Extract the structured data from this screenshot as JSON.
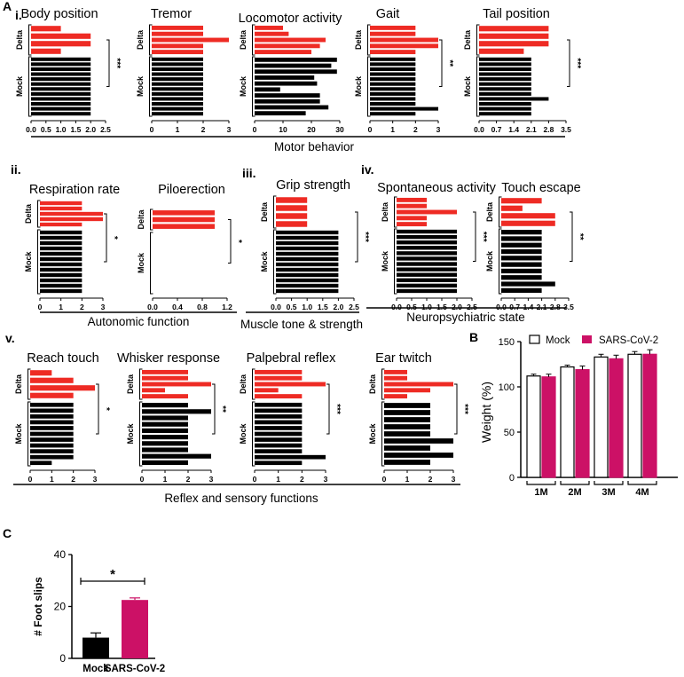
{
  "colors": {
    "delta": "#ee2b24",
    "mock": "#000000",
    "sars": "#cc1166",
    "axis": "#000000",
    "white": "#ffffff"
  },
  "panel_labels": {
    "A": "A",
    "B": "B",
    "C": "C",
    "i": "i.",
    "ii": "ii.",
    "iii": "iii.",
    "iv": "iv.",
    "v": "v."
  },
  "group_labels": {
    "delta": "Delta",
    "mock": "Mock"
  },
  "section_labels": {
    "motor": "Motor behavior",
    "autonomic": "Autonomic function",
    "muscle": "Muscle tone & strength",
    "neuro": "Neuropsychiatric  state",
    "reflex": "Reflex and sensory functions"
  },
  "chart_data": [
    {
      "id": "body-position",
      "type": "bar",
      "orientation": "horizontal",
      "title": "Body position",
      "delta": [
        1,
        2,
        2,
        1
      ],
      "mock": [
        2,
        2,
        2,
        2,
        2,
        2,
        2,
        2,
        2,
        2,
        2,
        2
      ],
      "xlim": [
        0,
        2.5
      ],
      "ticks": [
        "0.0",
        "0.5",
        "1.0",
        "1.5",
        "2.0",
        "2.5"
      ],
      "significance": "***"
    },
    {
      "id": "tremor",
      "type": "bar",
      "orientation": "horizontal",
      "title": "Tremor",
      "delta": [
        2,
        2,
        3,
        2,
        2
      ],
      "mock": [
        2,
        2,
        2,
        2,
        2,
        2,
        2,
        2,
        2,
        2,
        2,
        2
      ],
      "xlim": [
        0,
        3
      ],
      "ticks": [
        "0",
        "1",
        "2",
        "3"
      ],
      "significance": ""
    },
    {
      "id": "locomotor-activity",
      "type": "bar",
      "orientation": "horizontal",
      "title": "Locomotor activity",
      "delta": [
        10,
        12,
        25,
        23,
        20
      ],
      "mock": [
        29,
        27,
        29,
        21,
        22,
        9,
        23,
        23,
        26,
        18
      ],
      "xlim": [
        0,
        30
      ],
      "ticks": [
        "0",
        "10",
        "20",
        "30"
      ],
      "significance": ""
    },
    {
      "id": "gait",
      "type": "bar",
      "orientation": "horizontal",
      "title": "Gait",
      "delta": [
        2,
        2,
        3,
        3,
        2
      ],
      "mock": [
        2,
        2,
        2,
        2,
        2,
        2,
        2,
        2,
        2,
        2,
        3,
        2
      ],
      "xlim": [
        0,
        3
      ],
      "ticks": [
        "0",
        "1",
        "2",
        "3"
      ],
      "significance": "**"
    },
    {
      "id": "tail-position",
      "type": "bar",
      "orientation": "horizontal",
      "title": "Tail position",
      "delta": [
        2.8,
        2.8,
        2.8,
        1.8
      ],
      "mock": [
        2.1,
        2.1,
        2.1,
        2.1,
        2.1,
        2.1,
        2.1,
        2.1,
        2.8,
        2.1,
        2.1,
        2.1
      ],
      "xlim": [
        0,
        3.5
      ],
      "ticks": [
        "0.0",
        "0.7",
        "1.4",
        "2.1",
        "2.8",
        "3.5"
      ],
      "significance": "***"
    },
    {
      "id": "respiration-rate",
      "type": "bar",
      "orientation": "horizontal",
      "title": "Respiration rate",
      "delta": [
        2,
        2,
        3,
        3,
        2
      ],
      "mock": [
        2,
        2,
        2,
        2,
        2,
        2,
        2,
        2,
        2,
        2,
        2,
        2
      ],
      "xlim": [
        0,
        3
      ],
      "ticks": [
        "0",
        "1",
        "2",
        "3"
      ],
      "significance": "*"
    },
    {
      "id": "piloerection",
      "type": "bar",
      "orientation": "horizontal",
      "title": "Piloerection",
      "delta": [
        1,
        1,
        1
      ],
      "mock": [
        0,
        0,
        0,
        0,
        0,
        0,
        0,
        0,
        0,
        0,
        0,
        0
      ],
      "xlim": [
        0,
        1.2
      ],
      "ticks": [
        "0.0",
        "0.4",
        "0.8",
        "1.2"
      ],
      "significance": "*"
    },
    {
      "id": "grip-strength",
      "type": "bar",
      "orientation": "horizontal",
      "title": "Grip strength",
      "delta": [
        1,
        1,
        1,
        1
      ],
      "mock": [
        2,
        2,
        2,
        2,
        2,
        2,
        2,
        2,
        2,
        2,
        2,
        2
      ],
      "xlim": [
        0,
        2.5
      ],
      "ticks": [
        "0.0",
        "0.5",
        "1.0",
        "1.5",
        "2.0",
        "2.5"
      ],
      "significance": "***"
    },
    {
      "id": "spontaneous-activity",
      "type": "bar",
      "orientation": "horizontal",
      "title": "Spontaneous activity",
      "delta": [
        1,
        1,
        2,
        1,
        1
      ],
      "mock": [
        2,
        2,
        2,
        2,
        2,
        2,
        2,
        2,
        2,
        2,
        2,
        2
      ],
      "xlim": [
        0,
        2.5
      ],
      "ticks": [
        "0.0",
        "0.5",
        "1.0",
        "1.5",
        "2.0",
        "2.5"
      ],
      "significance": "***"
    },
    {
      "id": "touch-escape",
      "type": "bar",
      "orientation": "horizontal",
      "title": "Touch escape",
      "delta": [
        2.1,
        1.1,
        2.8,
        2.8
      ],
      "mock": [
        2.1,
        2.1,
        2.1,
        2.1,
        2.1,
        2.1,
        2.1,
        2.1,
        2.8,
        2.1
      ],
      "xlim": [
        0,
        3.5
      ],
      "ticks": [
        "0.0",
        "0.7",
        "1.4",
        "2.1",
        "2.8",
        "3.5"
      ],
      "significance": "**"
    },
    {
      "id": "reach-touch",
      "type": "bar",
      "orientation": "horizontal",
      "title": "Reach touch",
      "delta": [
        1,
        2,
        3,
        2
      ],
      "mock": [
        2,
        2,
        2,
        2,
        2,
        2,
        2,
        2,
        2,
        2,
        1
      ],
      "xlim": [
        0,
        3
      ],
      "ticks": [
        "0",
        "1",
        "2",
        "3"
      ],
      "significance": "*"
    },
    {
      "id": "whisker-response",
      "type": "bar",
      "orientation": "horizontal",
      "title": "Whisker response",
      "delta": [
        2,
        2,
        3,
        1,
        2
      ],
      "mock": [
        2,
        3,
        2,
        2,
        2,
        2,
        2,
        2,
        3,
        2
      ],
      "xlim": [
        0,
        3
      ],
      "ticks": [
        "0",
        "1",
        "2",
        "3"
      ],
      "significance": "**"
    },
    {
      "id": "palpebral-reflex",
      "type": "bar",
      "orientation": "horizontal",
      "title": "Palpebral reflex",
      "delta": [
        2,
        2,
        3,
        1,
        2
      ],
      "mock": [
        2,
        2,
        2,
        2,
        2,
        2,
        2,
        2,
        2,
        3,
        2
      ],
      "xlim": [
        0,
        3
      ],
      "ticks": [
        "0",
        "1",
        "2",
        "3"
      ],
      "significance": "***"
    },
    {
      "id": "ear-twitch",
      "type": "bar",
      "orientation": "horizontal",
      "title": "Ear twitch",
      "delta": [
        1,
        1,
        3,
        2,
        1
      ],
      "mock": [
        2,
        2,
        2,
        2,
        2,
        3,
        2,
        3,
        2
      ],
      "xlim": [
        0,
        3
      ],
      "ticks": [
        "0",
        "1",
        "2",
        "3"
      ],
      "significance": "***"
    },
    {
      "id": "weight",
      "type": "bar",
      "title": "",
      "ylabel": "Weight (%)",
      "categories": [
        "1M",
        "2M",
        "3M",
        "4M"
      ],
      "series": [
        {
          "name": "Mock",
          "values": [
            112,
            122,
            133,
            136
          ],
          "err": [
            2,
            2,
            3,
            3
          ]
        },
        {
          "name": "SARS-CoV-2",
          "values": [
            111,
            119,
            131,
            136
          ],
          "err": [
            3,
            4,
            4,
            5
          ]
        }
      ],
      "ylim": [
        0,
        150
      ],
      "ticks": [
        "0",
        "50",
        "100",
        "150"
      ]
    },
    {
      "id": "foot-slips",
      "type": "bar",
      "title": "",
      "ylabel": "# Foot slips",
      "categories": [
        "Mock",
        "SARS-CoV-2"
      ],
      "values": [
        8,
        22.5
      ],
      "err": [
        1.8,
        0.8
      ],
      "ylim": [
        0,
        40
      ],
      "ticks": [
        "0",
        "20",
        "40"
      ],
      "significance": "*"
    }
  ]
}
